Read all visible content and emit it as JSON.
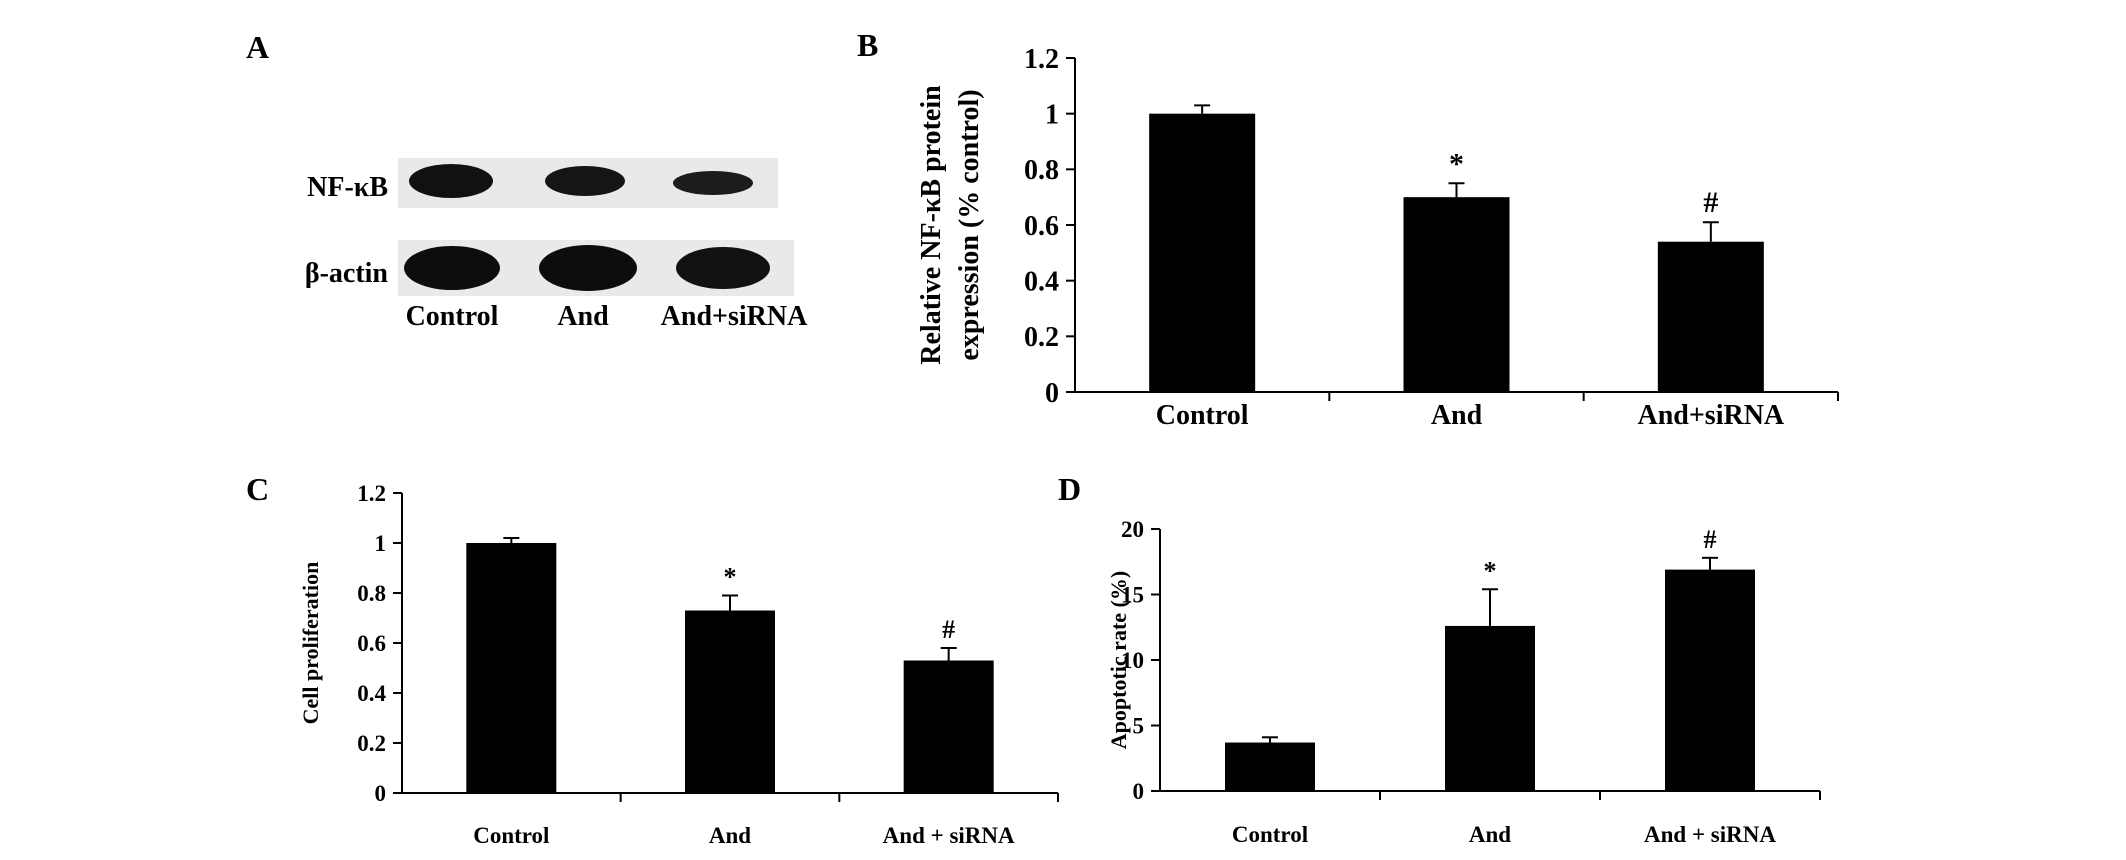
{
  "panels": {
    "A": {
      "letter": "A",
      "bands": [
        {
          "label": "NF-κB"
        },
        {
          "label": "β-actin"
        }
      ],
      "lanes": [
        "Control",
        "And",
        "And+siRNA"
      ]
    },
    "B": {
      "letter": "B"
    },
    "C": {
      "letter": "C"
    },
    "D": {
      "letter": "D"
    }
  },
  "chart_data": [
    {
      "panel": "B",
      "type": "bar",
      "categories": [
        "Control",
        "And",
        "And+siRNA"
      ],
      "values": [
        1.0,
        0.7,
        0.54
      ],
      "errors": [
        0.03,
        0.05,
        0.07
      ],
      "annotations": [
        "",
        "*",
        "#"
      ],
      "ylabel": [
        "Relative NF-κB protein",
        "expression (% control)"
      ],
      "ylim": [
        0,
        1.2
      ],
      "yticks": [
        "0",
        "0.2",
        "0.4",
        "0.6",
        "0.8",
        "1",
        "1.2"
      ],
      "ytick_values": [
        0,
        0.2,
        0.4,
        0.6,
        0.8,
        1.0,
        1.2
      ],
      "bar_color": "#000000"
    },
    {
      "panel": "C",
      "type": "bar",
      "categories": [
        "Control",
        "And",
        "And + siRNA"
      ],
      "values": [
        1.0,
        0.73,
        0.53
      ],
      "errors": [
        0.02,
        0.06,
        0.05
      ],
      "annotations": [
        "",
        "*",
        "#"
      ],
      "ylabel": [
        "Cell proliferation"
      ],
      "ylim": [
        0,
        1.2
      ],
      "yticks": [
        "0",
        "0.2",
        "0.4",
        "0.6",
        "0.8",
        "1",
        "1.2"
      ],
      "ytick_values": [
        0,
        0.2,
        0.4,
        0.6,
        0.8,
        1.0,
        1.2
      ],
      "bar_color": "#000000"
    },
    {
      "panel": "D",
      "type": "bar",
      "categories": [
        "Control",
        "And",
        "And + siRNA"
      ],
      "values": [
        3.7,
        12.6,
        16.9
      ],
      "errors": [
        0.4,
        2.8,
        0.9
      ],
      "annotations": [
        "",
        "*",
        "#"
      ],
      "ylabel": [
        "Apoptotic rate (%)"
      ],
      "ylim": [
        0,
        20
      ],
      "yticks": [
        "0",
        "5",
        "10",
        "15",
        "20"
      ],
      "ytick_values": [
        0,
        5,
        10,
        15,
        20
      ],
      "bar_color": "#000000"
    }
  ]
}
